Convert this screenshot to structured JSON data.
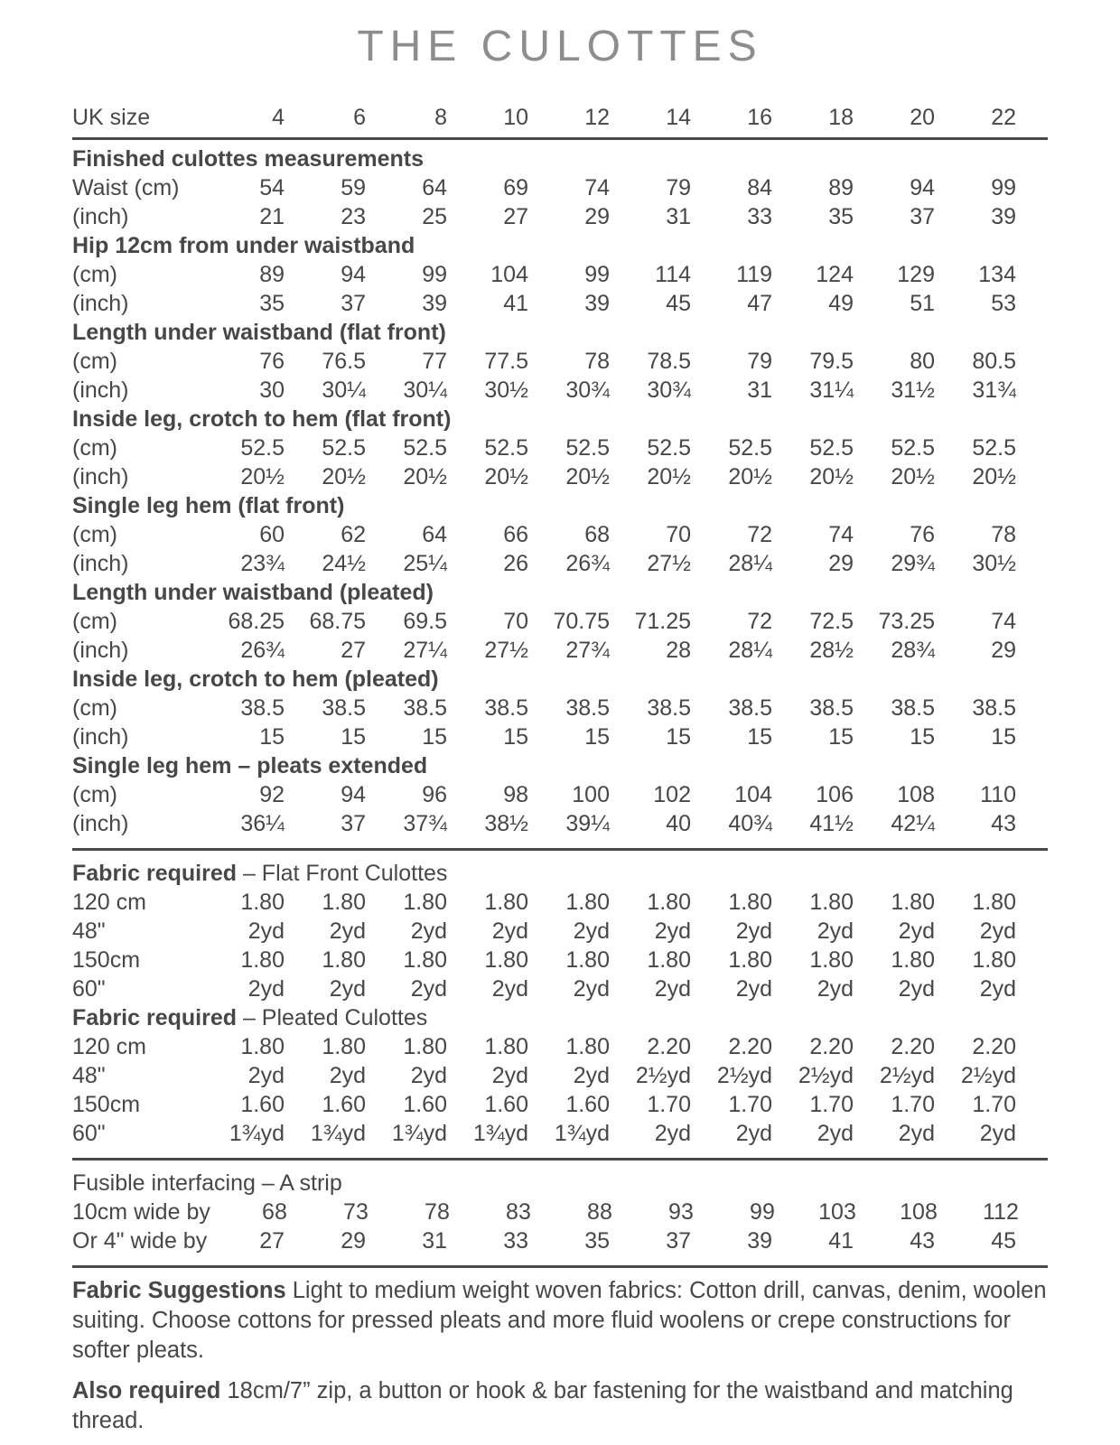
{
  "title": "THE CULOTTES",
  "style": {
    "text_color": "#474747",
    "title_color": "#8b8d8e",
    "rule_color": "#4a4a4a",
    "background": "#ffffff"
  },
  "table": {
    "header_label": "UK size",
    "sizes": [
      "4",
      "6",
      "8",
      "10",
      "12",
      "14",
      "16",
      "18",
      "20",
      "22"
    ],
    "rows": [
      {
        "kind": "section",
        "text": "Finished culottes measurements"
      },
      {
        "kind": "data",
        "label": "Waist (cm)",
        "values": [
          "54",
          "59",
          "64",
          "69",
          "74",
          "79",
          "84",
          "89",
          "94",
          "99"
        ]
      },
      {
        "kind": "data",
        "label": "(inch)",
        "values": [
          "21",
          "23",
          "25",
          "27",
          "29",
          "31",
          "33",
          "35",
          "37",
          "39"
        ]
      },
      {
        "kind": "section",
        "text": "Hip 12cm from under waistband"
      },
      {
        "kind": "data",
        "label": "(cm)",
        "values": [
          "89",
          "94",
          "99",
          "104",
          "99",
          "114",
          "119",
          "124",
          "129",
          "134"
        ]
      },
      {
        "kind": "data",
        "label": "(inch)",
        "values": [
          "35",
          "37",
          "39",
          "41",
          "39",
          "45",
          "47",
          "49",
          "51",
          "53"
        ]
      },
      {
        "kind": "section",
        "text": "Length under waistband (flat front)"
      },
      {
        "kind": "data",
        "label": "(cm)",
        "values": [
          "76",
          "76.5",
          "77",
          "77.5",
          "78",
          "78.5",
          "79",
          "79.5",
          "80",
          "80.5"
        ]
      },
      {
        "kind": "data",
        "label": "(inch)",
        "values": [
          "30",
          "30¼",
          "30¼",
          "30½",
          "30¾",
          "30¾",
          "31",
          "31¼",
          "31½",
          "31¾"
        ]
      },
      {
        "kind": "section",
        "text": "Inside leg, crotch to hem (flat front)"
      },
      {
        "kind": "data",
        "label": "(cm)",
        "values": [
          "52.5",
          "52.5",
          "52.5",
          "52.5",
          "52.5",
          "52.5",
          "52.5",
          "52.5",
          "52.5",
          "52.5"
        ]
      },
      {
        "kind": "data",
        "label": "(inch)",
        "values": [
          "20½",
          "20½",
          "20½",
          "20½",
          "20½",
          "20½",
          "20½",
          "20½",
          "20½",
          "20½"
        ]
      },
      {
        "kind": "section",
        "text": "Single leg hem (flat front)"
      },
      {
        "kind": "data",
        "label": "(cm)",
        "values": [
          "60",
          "62",
          "64",
          "66",
          "68",
          "70",
          "72",
          "74",
          "76",
          "78"
        ]
      },
      {
        "kind": "data",
        "label": "(inch)",
        "values": [
          "23¾",
          "24½",
          "25¼",
          "26",
          "26¾",
          "27½",
          "28¼",
          "29",
          "29¾",
          "30½"
        ]
      },
      {
        "kind": "section",
        "text": "Length under waistband (pleated)"
      },
      {
        "kind": "data",
        "label": "(cm)",
        "values": [
          "68.25",
          "68.75",
          "69.5",
          "70",
          "70.75",
          "71.25",
          "72",
          "72.5",
          "73.25",
          "74"
        ]
      },
      {
        "kind": "data",
        "label": "(inch)",
        "values": [
          "26¾",
          "27",
          "27¼",
          "27½",
          "27¾",
          "28",
          "28¼",
          "28½",
          "28¾",
          "29"
        ]
      },
      {
        "kind": "section",
        "text": "Inside leg, crotch to hem (pleated)"
      },
      {
        "kind": "data",
        "label": "(cm)",
        "values": [
          "38.5",
          "38.5",
          "38.5",
          "38.5",
          "38.5",
          "38.5",
          "38.5",
          "38.5",
          "38.5",
          "38.5"
        ]
      },
      {
        "kind": "data",
        "label": "(inch)",
        "values": [
          "15",
          "15",
          "15",
          "15",
          "15",
          "15",
          "15",
          "15",
          "15",
          "15"
        ]
      },
      {
        "kind": "section",
        "text": "Single leg hem – pleats extended"
      },
      {
        "kind": "data",
        "label": "(cm)",
        "values": [
          "92",
          "94",
          "96",
          "98",
          "100",
          "102",
          "104",
          "106",
          "108",
          "110"
        ]
      },
      {
        "kind": "data",
        "label": "(inch)",
        "values": [
          "36¼",
          "37",
          "37¾",
          "38½",
          "39¼",
          "40",
          "40¾",
          "41½",
          "42¼",
          "43"
        ]
      },
      {
        "kind": "rule"
      },
      {
        "kind": "section2",
        "bold": "Fabric required",
        "rest": "– Flat Front Culottes"
      },
      {
        "kind": "data",
        "label": "120 cm",
        "values": [
          "1.80",
          "1.80",
          "1.80",
          "1.80",
          "1.80",
          "1.80",
          "1.80",
          "1.80",
          "1.80",
          "1.80"
        ]
      },
      {
        "kind": "data",
        "label": "48\"",
        "values": [
          "2yd",
          "2yd",
          "2yd",
          "2yd",
          "2yd",
          "2yd",
          "2yd",
          "2yd",
          "2yd",
          "2yd"
        ]
      },
      {
        "kind": "data",
        "label": "150cm",
        "values": [
          "1.80",
          "1.80",
          "1.80",
          "1.80",
          "1.80",
          "1.80",
          "1.80",
          "1.80",
          "1.80",
          "1.80"
        ]
      },
      {
        "kind": "data",
        "label": "60\"",
        "values": [
          "2yd",
          "2yd",
          "2yd",
          "2yd",
          "2yd",
          "2yd",
          "2yd",
          "2yd",
          "2yd",
          "2yd"
        ]
      },
      {
        "kind": "section2",
        "bold": "Fabric required",
        "rest": "– Pleated Culottes"
      },
      {
        "kind": "data",
        "label": "120 cm",
        "values": [
          "1.80",
          "1.80",
          "1.80",
          "1.80",
          "1.80",
          "2.20",
          "2.20",
          "2.20",
          "2.20",
          "2.20"
        ]
      },
      {
        "kind": "data",
        "label": "48\"",
        "values": [
          "2yd",
          "2yd",
          "2yd",
          "2yd",
          "2yd",
          "2½yd",
          "2½yd",
          "2½yd",
          "2½yd",
          "2½yd"
        ]
      },
      {
        "kind": "data",
        "label": "150cm",
        "values": [
          "1.60",
          "1.60",
          "1.60",
          "1.60",
          "1.60",
          "1.70",
          "1.70",
          "1.70",
          "1.70",
          "1.70"
        ]
      },
      {
        "kind": "data",
        "label": "60\"",
        "values": [
          "1¾yd",
          "1¾yd",
          "1¾yd",
          "1¾yd",
          "1¾yd",
          "2yd",
          "2yd",
          "2yd",
          "2yd",
          "2yd"
        ]
      },
      {
        "kind": "rule"
      },
      {
        "kind": "plain",
        "text": "Fusible interfacing – A strip"
      },
      {
        "kind": "data",
        "label": "10cm wide by",
        "values": [
          "68",
          "73",
          "78",
          "83",
          "88",
          "93",
          "99",
          "103",
          "108",
          "112"
        ]
      },
      {
        "kind": "data",
        "label": "Or 4\" wide by",
        "values": [
          "27",
          "29",
          "31",
          "33",
          "35",
          "37",
          "39",
          "41",
          "43",
          "45"
        ]
      },
      {
        "kind": "rule"
      }
    ]
  },
  "notes": [
    {
      "lead": "Fabric Suggestions",
      "text": "Light to medium weight woven fabrics: Cotton drill, canvas, denim, woolen suiting. Choose cottons for pressed pleats and more fluid woolens or crepe constructions for softer pleats."
    },
    {
      "lead": "Also required",
      "text": "18cm/7” zip, a button or hook & bar fastening for the waistband and matching thread."
    }
  ]
}
